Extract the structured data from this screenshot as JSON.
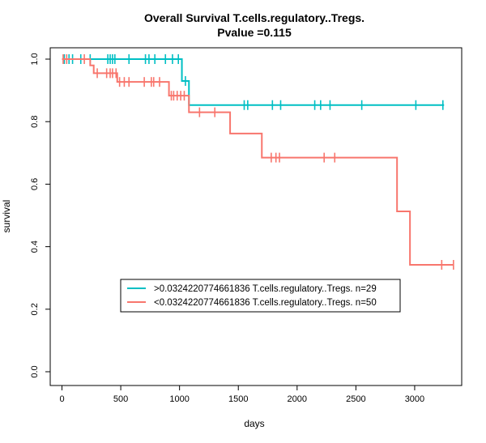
{
  "chart_data": {
    "type": "line",
    "title": "Overall Survival T.cells.regulatory..Tregs.",
    "subtitle": "Pvalue =0.115",
    "xlabel": "days",
    "ylabel": "survival",
    "xlim": [
      -100,
      3400
    ],
    "ylim": [
      0,
      1
    ],
    "x_ticks": [
      0,
      500,
      1000,
      1500,
      2000,
      2500,
      3000
    ],
    "y_ticks": [
      0.0,
      0.2,
      0.4,
      0.6,
      0.8,
      1.0
    ],
    "y_tick_labels": [
      "0.0",
      "0.2",
      "0.4",
      "0.6",
      "0.8",
      "1.0"
    ],
    "grid": false,
    "legend_position": "bottom-center",
    "series": [
      {
        "name": ">0.0324220774661836 T.cells.regulatory..Tregs. n=29",
        "color": "#00BFC4",
        "steps": [
          [
            0,
            1.0
          ],
          [
            1020,
            0.93
          ],
          [
            1080,
            0.853
          ],
          [
            3250,
            0.853
          ]
        ],
        "censor_x": [
          20,
          60,
          90,
          160,
          240,
          390,
          410,
          430,
          450,
          570,
          710,
          740,
          790,
          880,
          940,
          990,
          1050,
          1550,
          1580,
          1790,
          1860,
          2150,
          2200,
          2280,
          2550,
          3010,
          3240
        ]
      },
      {
        "name": "<0.0324220774661836 T.cells.regulatory..Tregs. n=50",
        "color": "#F8766D",
        "steps": [
          [
            0,
            1.0
          ],
          [
            240,
            0.98
          ],
          [
            270,
            0.955
          ],
          [
            470,
            0.927
          ],
          [
            910,
            0.883
          ],
          [
            1080,
            0.83
          ],
          [
            1430,
            0.762
          ],
          [
            1700,
            0.685
          ],
          [
            2850,
            0.513
          ],
          [
            2960,
            0.342
          ],
          [
            3330,
            0.342
          ]
        ],
        "censor_x": [
          10,
          40,
          190,
          300,
          380,
          410,
          430,
          460,
          490,
          530,
          570,
          700,
          760,
          780,
          830,
          930,
          950,
          980,
          1010,
          1040,
          1170,
          1300,
          1780,
          1820,
          1850,
          2230,
          2320,
          3230,
          3330
        ]
      }
    ]
  }
}
